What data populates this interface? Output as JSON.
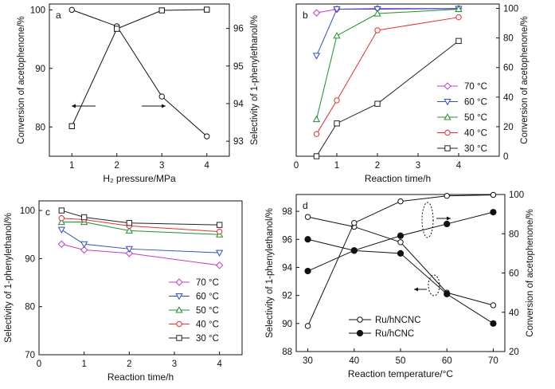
{
  "chart_data": [
    {
      "panel": "a",
      "type": "line",
      "panel_label": "a",
      "xlabel": "H₂ pressure/MPa",
      "ylabel": "Conversion of acetophenone/%",
      "ylabel_right": "Selectivity of 1-phenylethanol/%",
      "xlim": [
        0.5,
        4.5
      ],
      "ylim": [
        75,
        101
      ],
      "ylim_right": [
        92.6,
        96.65
      ],
      "xticks": [
        1,
        2,
        3,
        4
      ],
      "yticks": [
        80,
        90,
        100
      ],
      "yticks_right": [
        93,
        94,
        95,
        96
      ],
      "series": [
        {
          "axis": "left",
          "marker": "circle",
          "x": [
            1,
            2,
            3,
            4
          ],
          "values": [
            100,
            97.2,
            85.2,
            78.4
          ]
        },
        {
          "axis": "right",
          "marker": "square",
          "x": [
            1,
            2,
            3,
            4
          ],
          "values": [
            93.4,
            95.99,
            96.48,
            96.5
          ]
        }
      ]
    },
    {
      "panel": "b",
      "type": "line",
      "panel_label": "b",
      "xlabel": "Reaction time/h",
      "ylabel_right": "Conversion of acetophenone/%",
      "xlim": [
        0,
        5
      ],
      "ylim": [
        0,
        103
      ],
      "xticks": [
        0,
        1,
        2,
        3,
        4
      ],
      "yticks": [
        0,
        20,
        40,
        60,
        80,
        100
      ],
      "legend_position": "bottom-right",
      "series": [
        {
          "name": "70 °C",
          "color": "#c040c0",
          "marker": "diamond",
          "x": [
            0.5,
            1,
            2,
            4
          ],
          "values": [
            97,
            99.5,
            100,
            100
          ]
        },
        {
          "name": "60 °C",
          "color": "#3050c0",
          "marker": "triangle-down",
          "x": [
            0.5,
            1,
            2,
            4
          ],
          "values": [
            68,
            99.5,
            99.5,
            99.8
          ]
        },
        {
          "name": "50 °C",
          "color": "#209030",
          "marker": "triangle-up",
          "x": [
            0.5,
            1,
            2,
            4
          ],
          "values": [
            25,
            81.5,
            96.5,
            99.5
          ]
        },
        {
          "name": "40 °C",
          "color": "#e03030",
          "marker": "circle",
          "x": [
            0.5,
            1,
            2,
            4
          ],
          "values": [
            15,
            37.8,
            85.2,
            94
          ]
        },
        {
          "name": "30 °C",
          "color": "#222222",
          "marker": "square",
          "x": [
            0.5,
            1,
            2,
            4
          ],
          "values": [
            0,
            22.2,
            35.5,
            78
          ]
        }
      ]
    },
    {
      "panel": "c",
      "type": "line",
      "panel_label": "c",
      "xlabel": "Reaction time/h",
      "ylabel": "Selectivity of 1-phenylethanol/%",
      "xlim": [
        0,
        4.5
      ],
      "ylim": [
        70,
        102
      ],
      "xticks": [
        0,
        1,
        2,
        3,
        4
      ],
      "yticks": [
        70,
        80,
        90,
        100
      ],
      "legend_position": "bottom-right",
      "series": [
        {
          "name": "70 °C",
          "color": "#c040c0",
          "marker": "diamond",
          "x": [
            0.5,
            1,
            2,
            4
          ],
          "values": [
            93,
            91.8,
            91.1,
            88.6
          ]
        },
        {
          "name": "60 °C",
          "color": "#3050c0",
          "marker": "triangle-down",
          "x": [
            0.5,
            1,
            2,
            4
          ],
          "values": [
            96,
            93,
            92,
            91.2
          ]
        },
        {
          "name": "50 °C",
          "color": "#209030",
          "marker": "triangle-up",
          "x": [
            0.5,
            1,
            2,
            4
          ],
          "values": [
            97.6,
            97.6,
            95.8,
            95
          ]
        },
        {
          "name": "40 °C",
          "color": "#e03030",
          "marker": "circle",
          "x": [
            0.5,
            1,
            2,
            4
          ],
          "values": [
            98.4,
            98.1,
            96.8,
            95.6
          ]
        },
        {
          "name": "30 °C",
          "color": "#222222",
          "marker": "square",
          "x": [
            0.5,
            1,
            2,
            4
          ],
          "values": [
            100,
            98.6,
            97.4,
            97
          ]
        }
      ]
    },
    {
      "panel": "d",
      "type": "line",
      "panel_label": "d",
      "xlabel": "Reaction temperature/°C",
      "ylabel": "Selectivity of 1-phenylethanol/%",
      "ylabel_right": "Conversion of acetophenone/%",
      "xlim": [
        27.5,
        72.5
      ],
      "ylim": [
        88,
        99.2
      ],
      "ylim_right": [
        20,
        100
      ],
      "xticks": [
        30,
        40,
        50,
        60,
        70
      ],
      "yticks": [
        88,
        90,
        92,
        94,
        96,
        98
      ],
      "yticks_right": [
        20,
        40,
        60,
        80,
        100
      ],
      "legend_position": "bottom-left",
      "series": [
        {
          "name": "Ru/hNCNC",
          "marker": "circle-open",
          "axis": "left",
          "x": [
            30,
            40,
            50,
            60,
            70
          ],
          "values": [
            97.6,
            96.9,
            95.8,
            92.2,
            91.3
          ]
        },
        {
          "name": "Ru/hNCNC",
          "marker": "circle-open",
          "axis": "right",
          "x": [
            30,
            40,
            50,
            60,
            70
          ],
          "values": [
            33,
            85.5,
            96.5,
            99.3,
            99.8
          ]
        },
        {
          "name": "Ru/hCNC",
          "marker": "circle-filled",
          "axis": "left",
          "x": [
            30,
            40,
            50,
            60,
            70
          ],
          "values": [
            96,
            95.2,
            95,
            92.1,
            90
          ]
        },
        {
          "name": "Ru/hCNC",
          "marker": "circle-filled",
          "axis": "right",
          "x": [
            30,
            40,
            50,
            60,
            70
          ],
          "values": [
            61,
            71.5,
            79,
            85,
            91
          ]
        }
      ]
    }
  ]
}
